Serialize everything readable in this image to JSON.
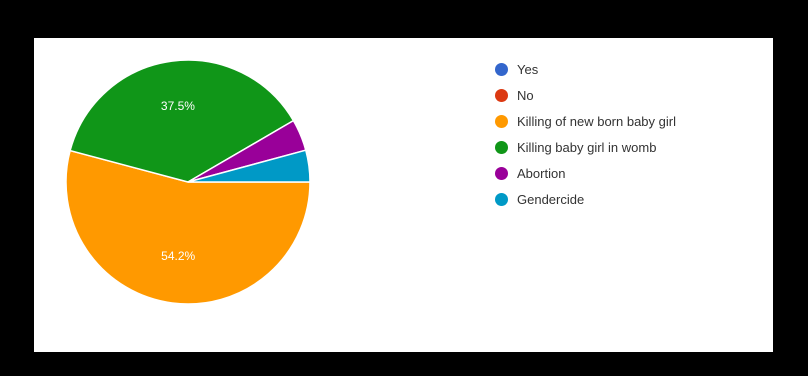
{
  "chart_data": {
    "type": "pie",
    "title": "",
    "slices": [
      {
        "label": "Yes",
        "value": 0,
        "color": "#3366cc",
        "data_label": ""
      },
      {
        "label": "No",
        "value": 0,
        "color": "#dc3912",
        "data_label": ""
      },
      {
        "label": "Killing of new born baby girl",
        "value": 54.2,
        "color": "#ff9900",
        "data_label": "54.2%"
      },
      {
        "label": "Killing baby girl in womb",
        "value": 37.5,
        "color": "#109618",
        "data_label": "37.5%"
      },
      {
        "label": "Abortion",
        "value": 4.2,
        "color": "#990099",
        "data_label": ""
      },
      {
        "label": "Gendercide",
        "value": 4.2,
        "color": "#0099c6",
        "data_label": ""
      }
    ],
    "legend_position": "right"
  }
}
